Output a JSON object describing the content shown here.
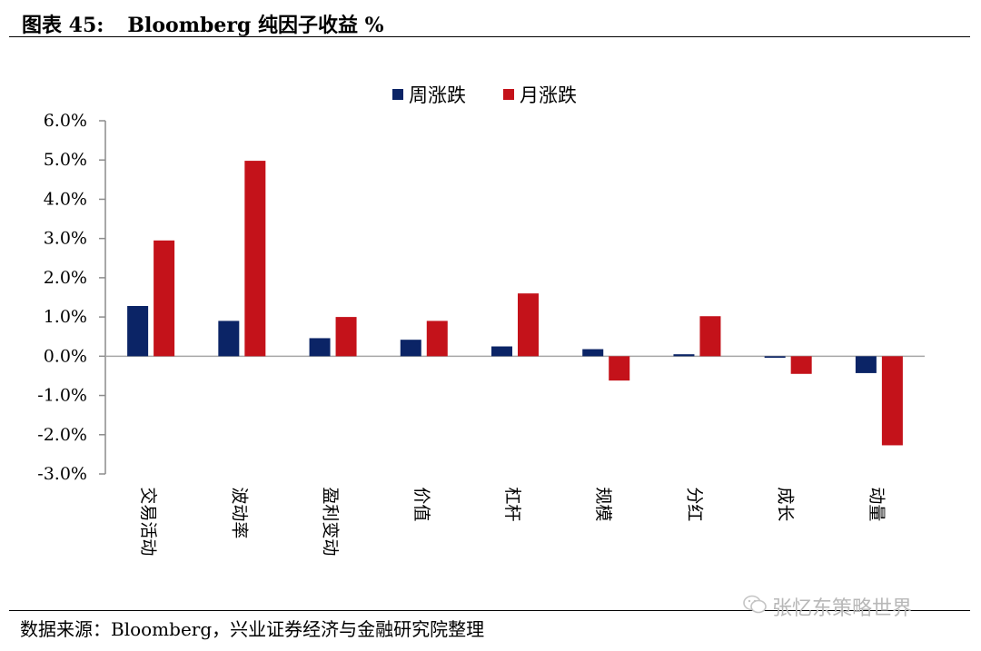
{
  "figure": {
    "number": "图表 45:",
    "title": "Bloomberg 纯因子收益 %",
    "source": "数据来源：Bloomberg，兴业证券经济与金融研究院整理",
    "watermark": "张忆东策略世界",
    "watermark_icon": "wechat-icon"
  },
  "chart_data": {
    "type": "bar",
    "categories": [
      "交易活动",
      "波动率",
      "盈利变动",
      "价值",
      "杠杆",
      "规模",
      "分红",
      "成长",
      "动量"
    ],
    "series": [
      {
        "name": "周涨跌",
        "color": "#0b2466",
        "values": [
          1.28,
          0.9,
          0.46,
          0.42,
          0.25,
          0.18,
          0.05,
          -0.04,
          -0.43
        ]
      },
      {
        "name": "月涨跌",
        "color": "#c4121a",
        "values": [
          2.95,
          4.98,
          1.0,
          0.9,
          1.6,
          -0.62,
          1.02,
          -0.45,
          -2.27
        ]
      }
    ],
    "y_ticks": [
      "6.0%",
      "5.0%",
      "4.0%",
      "3.0%",
      "2.0%",
      "1.0%",
      "0.0%",
      "-1.0%",
      "-2.0%",
      "-3.0%"
    ],
    "ylim": [
      -3.0,
      6.0
    ],
    "grid": false,
    "legend_position": "top-center"
  }
}
